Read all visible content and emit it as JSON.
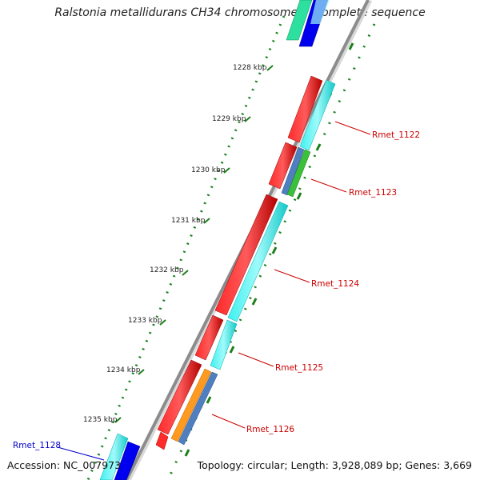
{
  "title": "Ralstonia metallidurans CH34 chromosome 1, complete sequence",
  "footer": {
    "accession_label": "Accession:",
    "accession": "NC_007973",
    "topology_label": "Topology:",
    "topology": "circular",
    "length_label": "Length:",
    "length": "3,928,089 bp",
    "genes_label": "Genes:",
    "genes": "3,669"
  },
  "colors": {
    "backbone": "#8c8c8c",
    "ticks": "#1a7f1a",
    "gene_label_red": "#cc0000",
    "gene_label_blue": "#0000cc"
  },
  "scale_labels": [
    "1228 kbp",
    "1229 kbp",
    "1230 kbp",
    "1231 kbp",
    "1232 kbp",
    "1233 kbp",
    "1234 kbp",
    "1235 kbp"
  ],
  "gene_labels": [
    {
      "text": "Rmet_1122",
      "color": "red"
    },
    {
      "text": "Rmet_1123",
      "color": "red"
    },
    {
      "text": "Rmet_1124",
      "color": "red"
    },
    {
      "text": "Rmet_1125",
      "color": "red"
    },
    {
      "text": "Rmet_1126",
      "color": "red"
    },
    {
      "text": "Rmet_1128",
      "color": "blue"
    }
  ]
}
